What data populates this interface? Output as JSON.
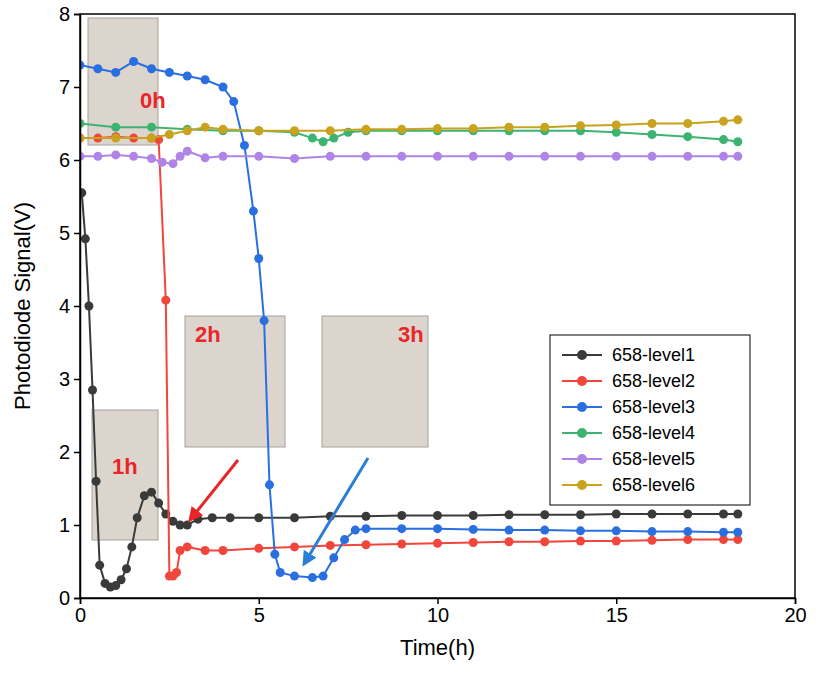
{
  "chart_data": {
    "type": "line",
    "x_label": "Time(h)",
    "y_label": "Photodiode Signal(V)",
    "xlim": [
      0,
      20
    ],
    "ylim": [
      0,
      8
    ],
    "xticks": [
      0,
      5,
      10,
      15,
      20
    ],
    "yticks": [
      0,
      1,
      2,
      3,
      4,
      5,
      6,
      7,
      8
    ],
    "grid": false,
    "legend": "right",
    "marker": "circle",
    "line_style": "solid",
    "annotations": [
      "0h",
      "1h",
      "2h",
      "3h"
    ],
    "series": [
      {
        "name": "658-level1",
        "color": "#3a3a3a",
        "x": [
          0.05,
          0.15,
          0.25,
          0.35,
          0.45,
          0.55,
          0.7,
          0.85,
          1.0,
          1.15,
          1.3,
          1.45,
          1.6,
          1.8,
          2.0,
          2.2,
          2.4,
          2.6,
          2.8,
          3.0,
          3.3,
          3.7,
          4.2,
          5,
          6,
          7,
          8,
          9,
          10,
          11,
          12,
          13,
          14,
          15,
          16,
          17,
          18,
          18.4
        ],
        "values": [
          5.55,
          4.92,
          4.0,
          2.85,
          1.6,
          0.45,
          0.2,
          0.15,
          0.17,
          0.25,
          0.4,
          0.7,
          1.1,
          1.4,
          1.45,
          1.3,
          1.15,
          1.05,
          1.0,
          1.0,
          1.08,
          1.1,
          1.1,
          1.1,
          1.1,
          1.12,
          1.12,
          1.13,
          1.13,
          1.13,
          1.14,
          1.14,
          1.14,
          1.15,
          1.15,
          1.15,
          1.15,
          1.15
        ]
      },
      {
        "name": "658-level2",
        "color": "#f0463c",
        "x": [
          0,
          0.5,
          1,
          1.5,
          2,
          2.2,
          2.4,
          2.5,
          2.6,
          2.7,
          2.8,
          3,
          3.5,
          4,
          5,
          6,
          7,
          8,
          9,
          10,
          11,
          12,
          13,
          14,
          15,
          16,
          17,
          18,
          18.4
        ],
        "values": [
          6.3,
          6.3,
          6.32,
          6.3,
          6.3,
          6.28,
          4.08,
          0.3,
          0.3,
          0.35,
          0.65,
          0.7,
          0.65,
          0.65,
          0.68,
          0.7,
          0.72,
          0.73,
          0.74,
          0.75,
          0.76,
          0.77,
          0.77,
          0.78,
          0.78,
          0.79,
          0.8,
          0.8,
          0.8
        ]
      },
      {
        "name": "658-level3",
        "color": "#2a6fe0",
        "x": [
          0,
          0.5,
          1,
          1.5,
          2,
          2.5,
          3,
          3.5,
          4,
          4.3,
          4.6,
          4.85,
          5.0,
          5.15,
          5.3,
          5.45,
          5.6,
          6,
          6.5,
          6.8,
          7.1,
          7.4,
          7.7,
          8,
          9,
          10,
          11,
          12,
          13,
          14,
          15,
          16,
          17,
          18,
          18.4
        ],
        "values": [
          7.3,
          7.25,
          7.2,
          7.35,
          7.25,
          7.2,
          7.15,
          7.1,
          7.0,
          6.8,
          6.2,
          5.3,
          4.65,
          3.8,
          1.55,
          0.6,
          0.35,
          0.3,
          0.28,
          0.3,
          0.55,
          0.8,
          0.93,
          0.95,
          0.95,
          0.95,
          0.94,
          0.93,
          0.93,
          0.92,
          0.92,
          0.91,
          0.91,
          0.9,
          0.9
        ]
      },
      {
        "name": "658-level4",
        "color": "#3cb371",
        "x": [
          0,
          1,
          2,
          3,
          4,
          5,
          6,
          6.5,
          6.8,
          7.1,
          7.5,
          8,
          9,
          10,
          11,
          12,
          13,
          14,
          15,
          16,
          17,
          18,
          18.4
        ],
        "values": [
          6.5,
          6.45,
          6.45,
          6.42,
          6.4,
          6.4,
          6.38,
          6.3,
          6.25,
          6.3,
          6.38,
          6.4,
          6.4,
          6.4,
          6.4,
          6.4,
          6.4,
          6.4,
          6.38,
          6.35,
          6.32,
          6.28,
          6.25
        ]
      },
      {
        "name": "658-level5",
        "color": "#b084e6",
        "x": [
          0,
          0.5,
          1,
          1.5,
          2,
          2.3,
          2.6,
          2.8,
          3,
          3.5,
          4,
          5,
          6,
          7,
          8,
          9,
          10,
          11,
          12,
          13,
          14,
          15,
          16,
          17,
          18,
          18.4
        ],
        "values": [
          6.05,
          6.05,
          6.07,
          6.05,
          6.02,
          5.97,
          5.95,
          6.05,
          6.12,
          6.03,
          6.05,
          6.05,
          6.02,
          6.05,
          6.05,
          6.05,
          6.05,
          6.05,
          6.05,
          6.05,
          6.05,
          6.05,
          6.05,
          6.05,
          6.05,
          6.05
        ]
      },
      {
        "name": "658-level6",
        "color": "#c9a21e",
        "x": [
          0,
          1,
          2,
          2.5,
          3,
          3.5,
          4,
          5,
          6,
          7,
          8,
          9,
          10,
          11,
          12,
          13,
          14,
          15,
          16,
          17,
          18,
          18.4
        ],
        "values": [
          6.3,
          6.3,
          6.3,
          6.35,
          6.4,
          6.45,
          6.42,
          6.4,
          6.4,
          6.4,
          6.42,
          6.42,
          6.43,
          6.43,
          6.45,
          6.45,
          6.47,
          6.48,
          6.5,
          6.5,
          6.53,
          6.55
        ]
      }
    ]
  }
}
